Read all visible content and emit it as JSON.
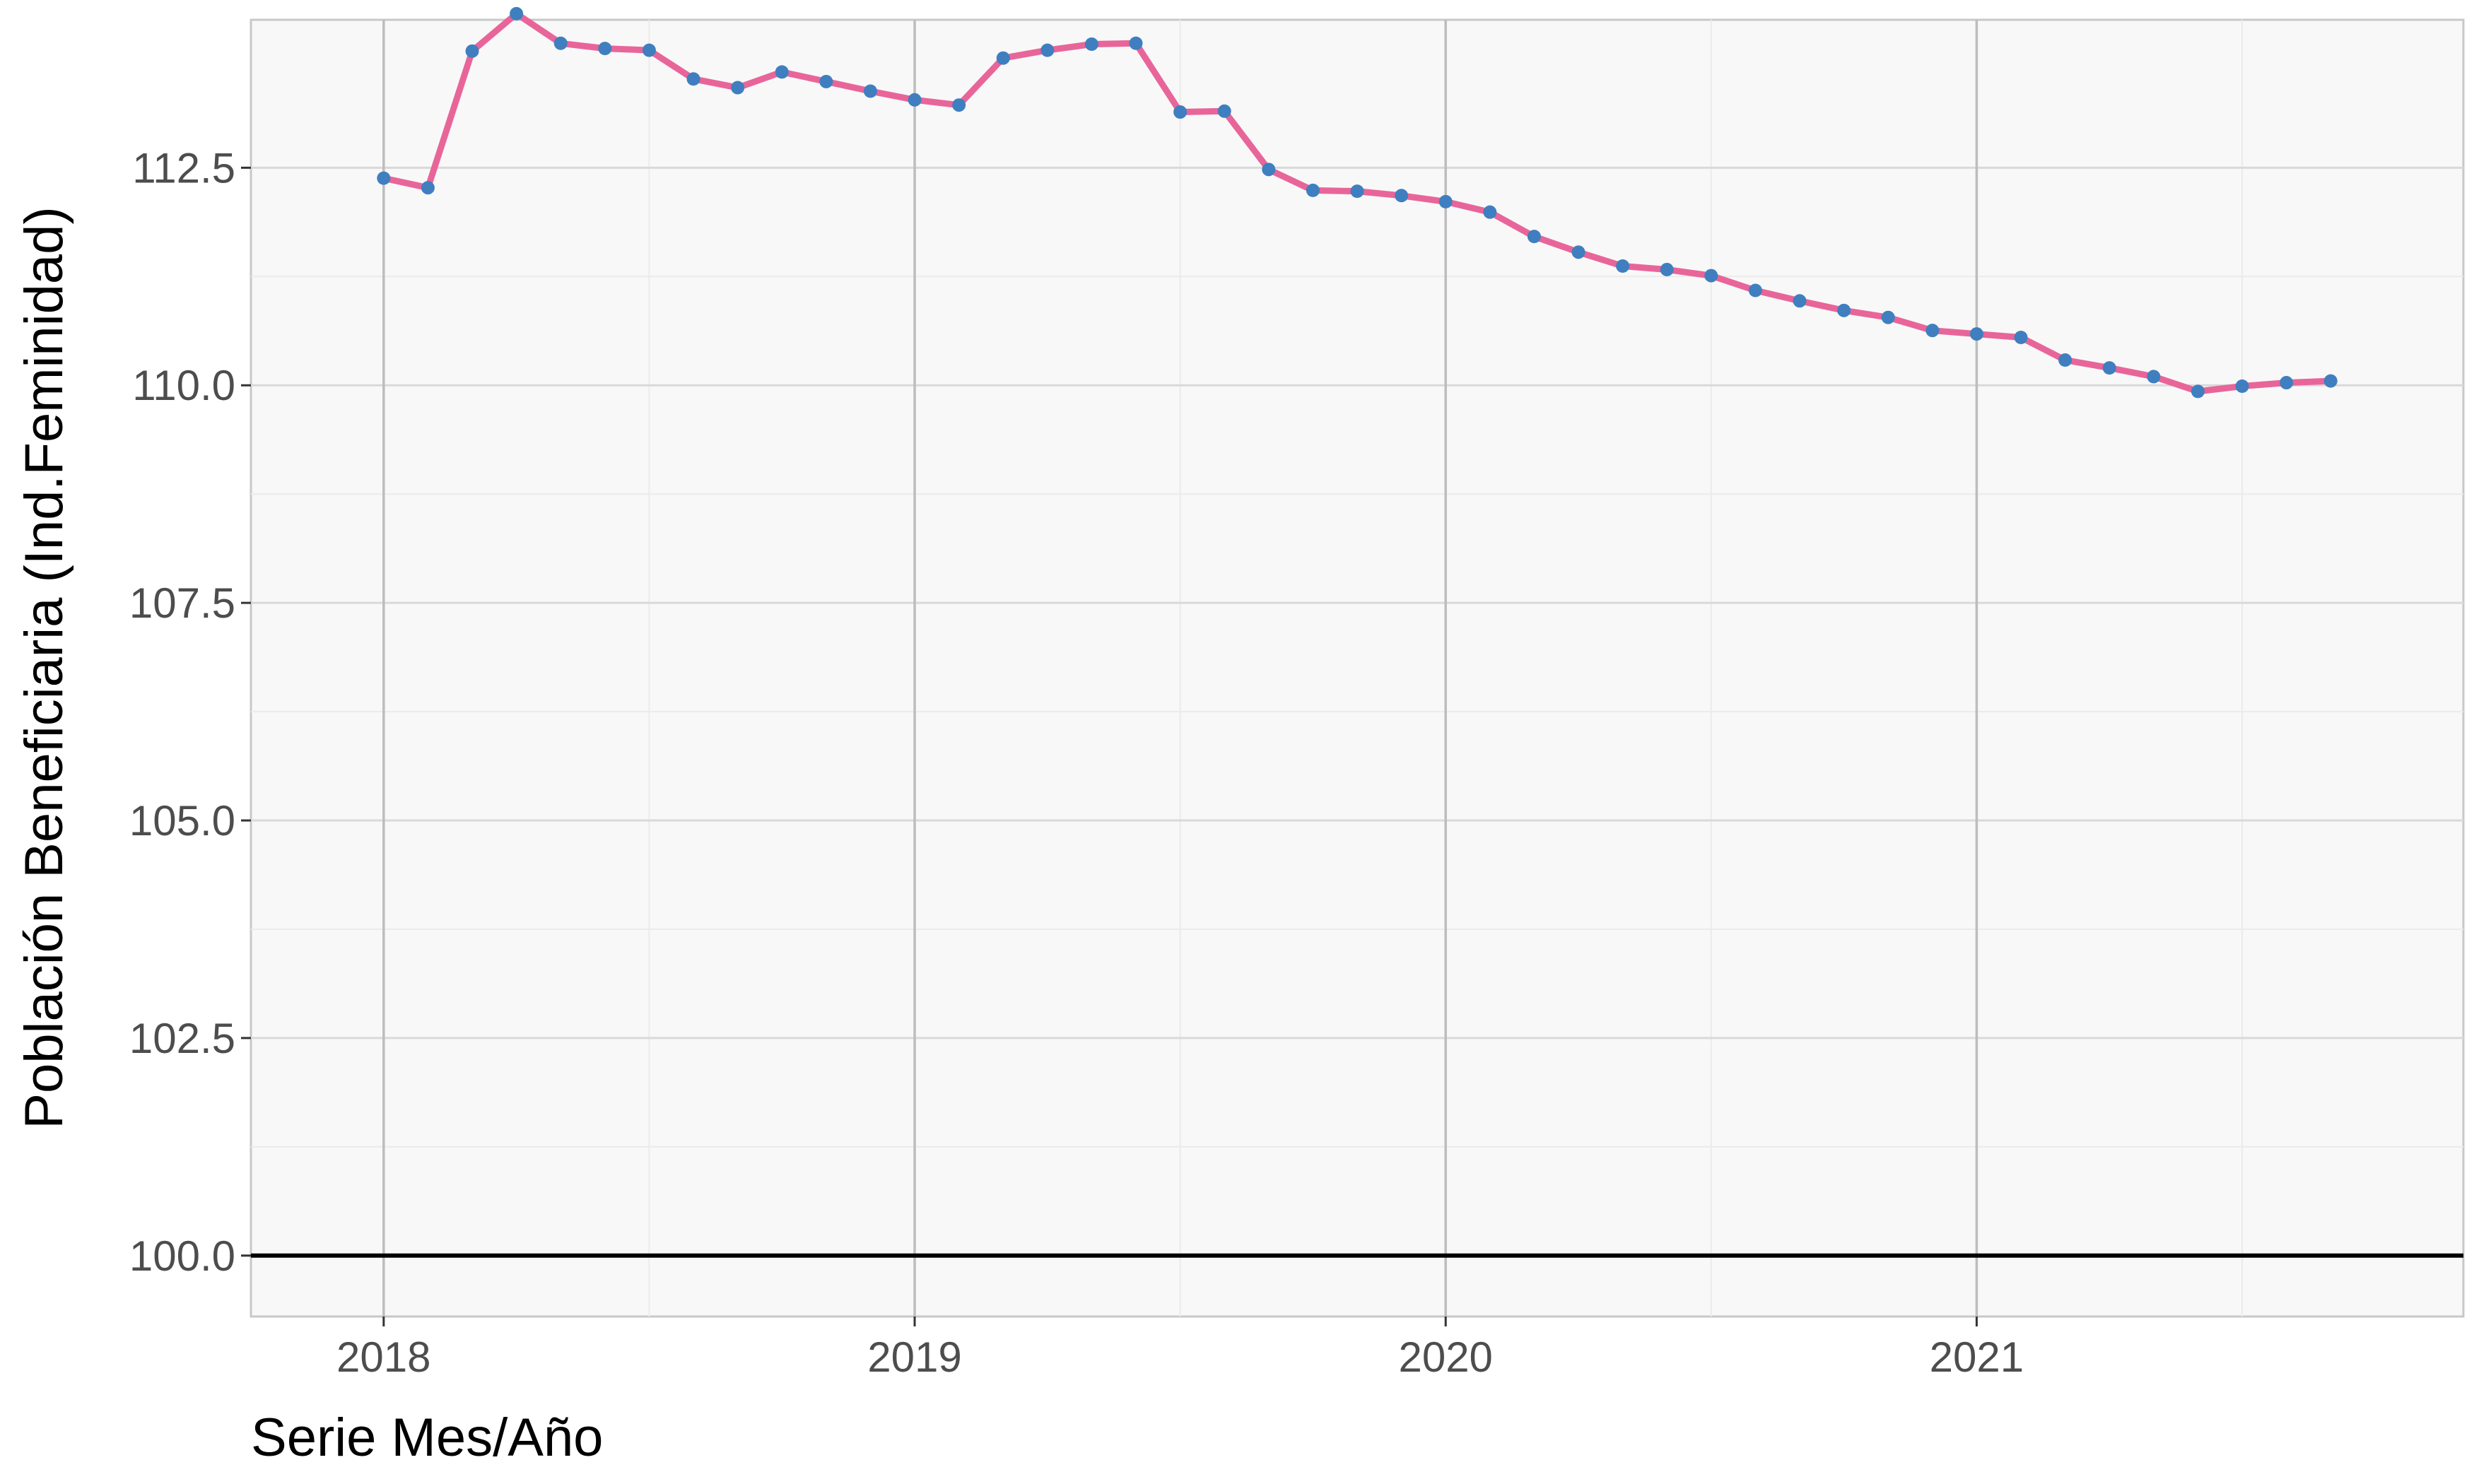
{
  "chart_data": {
    "type": "line",
    "title": "",
    "xlabel": "Serie Mes/Año",
    "ylabel": "Población Beneficiaria (Ind.Feminidad)",
    "x_ticks": [
      "2018",
      "2019",
      "2020",
      "2021"
    ],
    "y_ticks": [
      "100.0",
      "102.5",
      "105.0",
      "107.5",
      "110.0",
      "112.5"
    ],
    "ylim": [
      99.3,
      114.2
    ],
    "xlim": [
      "2017-10",
      "2021-12"
    ],
    "reference_line": {
      "y": 100.0,
      "color": "#000000"
    },
    "grid": true,
    "colors": {
      "line": "#e8659a",
      "points": "#3f7fbf",
      "panel": "#f8f8f8",
      "grid": "#d9d9d9",
      "grid_major_x": "#bdbdbd"
    },
    "series": [
      {
        "x": [
          "2018-01",
          "2018-02",
          "2018-03",
          "2018-04",
          "2018-05",
          "2018-06",
          "2018-07",
          "2018-08",
          "2018-09",
          "2018-10",
          "2018-11",
          "2018-12",
          "2019-01",
          "2019-02",
          "2019-03",
          "2019-04",
          "2019-05",
          "2019-06",
          "2019-07",
          "2019-08",
          "2019-09",
          "2019-10",
          "2019-11",
          "2019-12",
          "2020-01",
          "2020-02",
          "2020-03",
          "2020-04",
          "2020-05",
          "2020-06",
          "2020-07",
          "2020-08",
          "2020-09",
          "2020-10",
          "2020-11",
          "2020-12",
          "2021-01",
          "2021-02",
          "2021-03",
          "2021-04",
          "2021-05",
          "2021-06",
          "2021-07",
          "2021-08",
          "2021-09"
        ],
        "values": [
          112.38,
          112.27,
          113.84,
          114.27,
          113.93,
          113.87,
          113.85,
          113.52,
          113.42,
          113.6,
          113.49,
          113.38,
          113.28,
          113.22,
          113.76,
          113.85,
          113.92,
          113.93,
          113.14,
          113.15,
          112.48,
          112.24,
          112.23,
          112.18,
          112.11,
          111.99,
          111.71,
          111.53,
          111.37,
          111.33,
          111.26,
          111.09,
          110.97,
          110.86,
          110.78,
          110.63,
          110.59,
          110.55,
          110.29,
          110.2,
          110.1,
          109.93,
          109.99,
          110.03,
          110.05
        ]
      }
    ]
  }
}
